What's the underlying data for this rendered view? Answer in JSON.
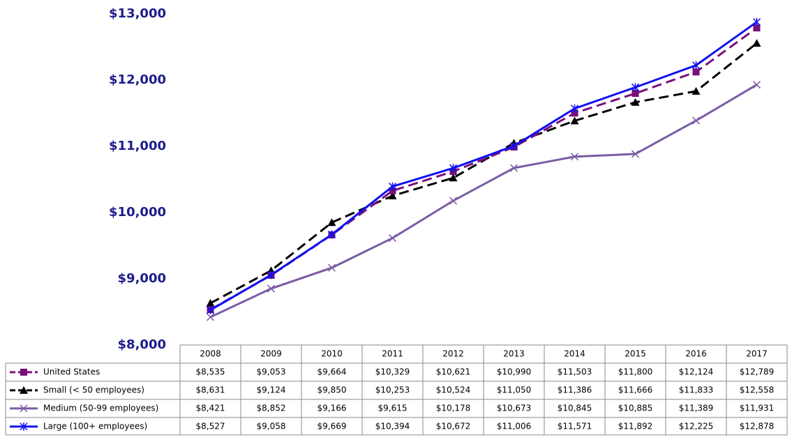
{
  "chart_data": {
    "type": "line",
    "categories": [
      "2008",
      "2009",
      "2010",
      "2011",
      "2012",
      "2013",
      "2014",
      "2015",
      "2016",
      "2017"
    ],
    "ylim": [
      8000,
      13000
    ],
    "yticks": [
      {
        "value": 8000,
        "label": "$8,000"
      },
      {
        "value": 9000,
        "label": "$9,000"
      },
      {
        "value": 10000,
        "label": "$10,000"
      },
      {
        "value": 11000,
        "label": "$11,000"
      },
      {
        "value": 12000,
        "label": "$12,000"
      },
      {
        "value": 13000,
        "label": "$13,000"
      }
    ],
    "grid": false,
    "series": [
      {
        "name": "United States",
        "color": "#7a0f7a",
        "dashed": true,
        "marker": "square",
        "values": [
          8535,
          9053,
          9664,
          10329,
          10621,
          10990,
          11503,
          11800,
          12124,
          12789
        ],
        "value_labels": [
          "$8,535",
          "$9,053",
          "$9,664",
          "$10,329",
          "$10,621",
          "$10,990",
          "$11,503",
          "$11,800",
          "$12,124",
          "$12,789"
        ]
      },
      {
        "name": "Small (< 50 employees)",
        "color": "#000000",
        "dashed": true,
        "marker": "triangle",
        "values": [
          8631,
          9124,
          9850,
          10253,
          10524,
          11050,
          11386,
          11666,
          11833,
          12558
        ],
        "value_labels": [
          "$8,631",
          "$9,124",
          "$9,850",
          "$10,253",
          "$10,524",
          "$11,050",
          "$11,386",
          "$11,666",
          "$11,833",
          "$12,558"
        ]
      },
      {
        "name": "Medium (50-99 employees)",
        "color": "#7b5ba6",
        "dashed": false,
        "marker": "x",
        "values": [
          8421,
          8852,
          9166,
          9615,
          10178,
          10673,
          10845,
          10885,
          11389,
          11931
        ],
        "value_labels": [
          "$8,421",
          "$8,852",
          "$9,166",
          "$9,615",
          "$10,178",
          "$10,673",
          "$10,845",
          "$10,885",
          "$11,389",
          "$11,931"
        ]
      },
      {
        "name": "Large (100+ employees)",
        "color": "#1010f0",
        "dashed": false,
        "marker": "asterisk",
        "values": [
          8527,
          9058,
          9669,
          10394,
          10672,
          11006,
          11571,
          11892,
          12225,
          12878
        ],
        "value_labels": [
          "$8,527",
          "$9,058",
          "$9,669",
          "$10,394",
          "$10,672",
          "$11,006",
          "$11,571",
          "$11,892",
          "$12,225",
          "$12,878"
        ]
      }
    ]
  }
}
